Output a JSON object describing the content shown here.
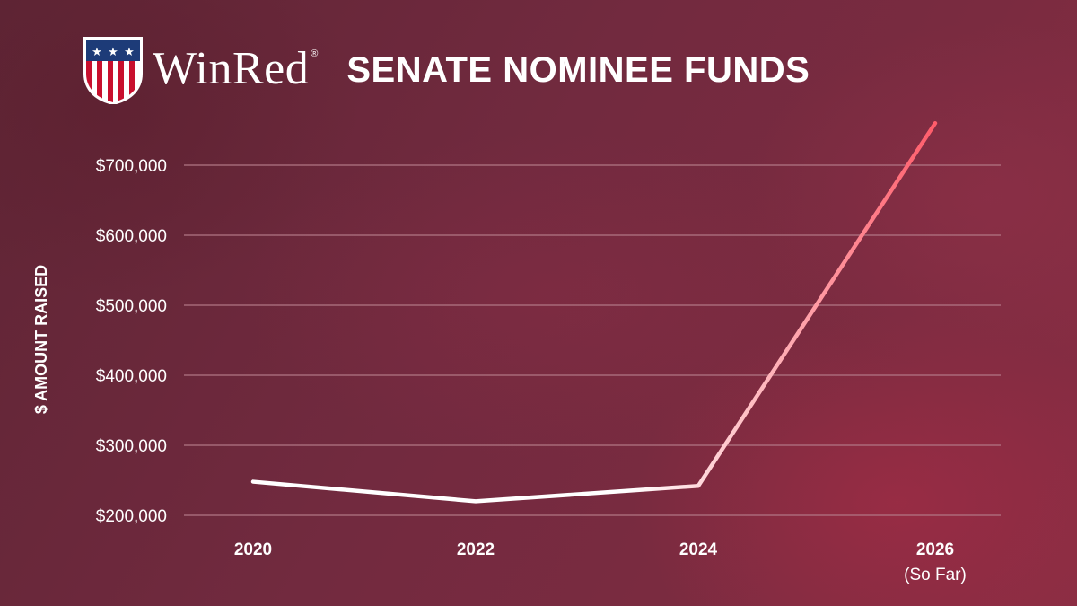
{
  "brand": {
    "name": "WinRed",
    "registered_mark": "®",
    "colors": {
      "stripe_red": "#c8102e",
      "field_blue": "#1d3b78",
      "white": "#ffffff"
    }
  },
  "colors": {
    "line_start": "#ffffff",
    "line_end": "#ff5c6a",
    "grid": "#b47a88"
  },
  "chart_data": {
    "type": "line",
    "title": "SENATE NOMINEE FUNDS",
    "xlabel": "",
    "ylabel": "$ AMOUNT RAISED",
    "categories": [
      "2020",
      "2022",
      "2024",
      "2026"
    ],
    "category_sublabels": [
      "",
      "",
      "",
      "(So Far)"
    ],
    "series": [
      {
        "name": "Senate Nominee Funds",
        "values": [
          248000,
          220000,
          242000,
          760000
        ]
      }
    ],
    "yticks": [
      200000,
      300000,
      400000,
      500000,
      600000,
      700000
    ],
    "ytick_labels": [
      "$200,000",
      "$300,000",
      "$400,000",
      "$500,000",
      "$600,000",
      "$700,000"
    ],
    "ylim": [
      200000,
      700000
    ],
    "grid": true,
    "legend": "none"
  }
}
